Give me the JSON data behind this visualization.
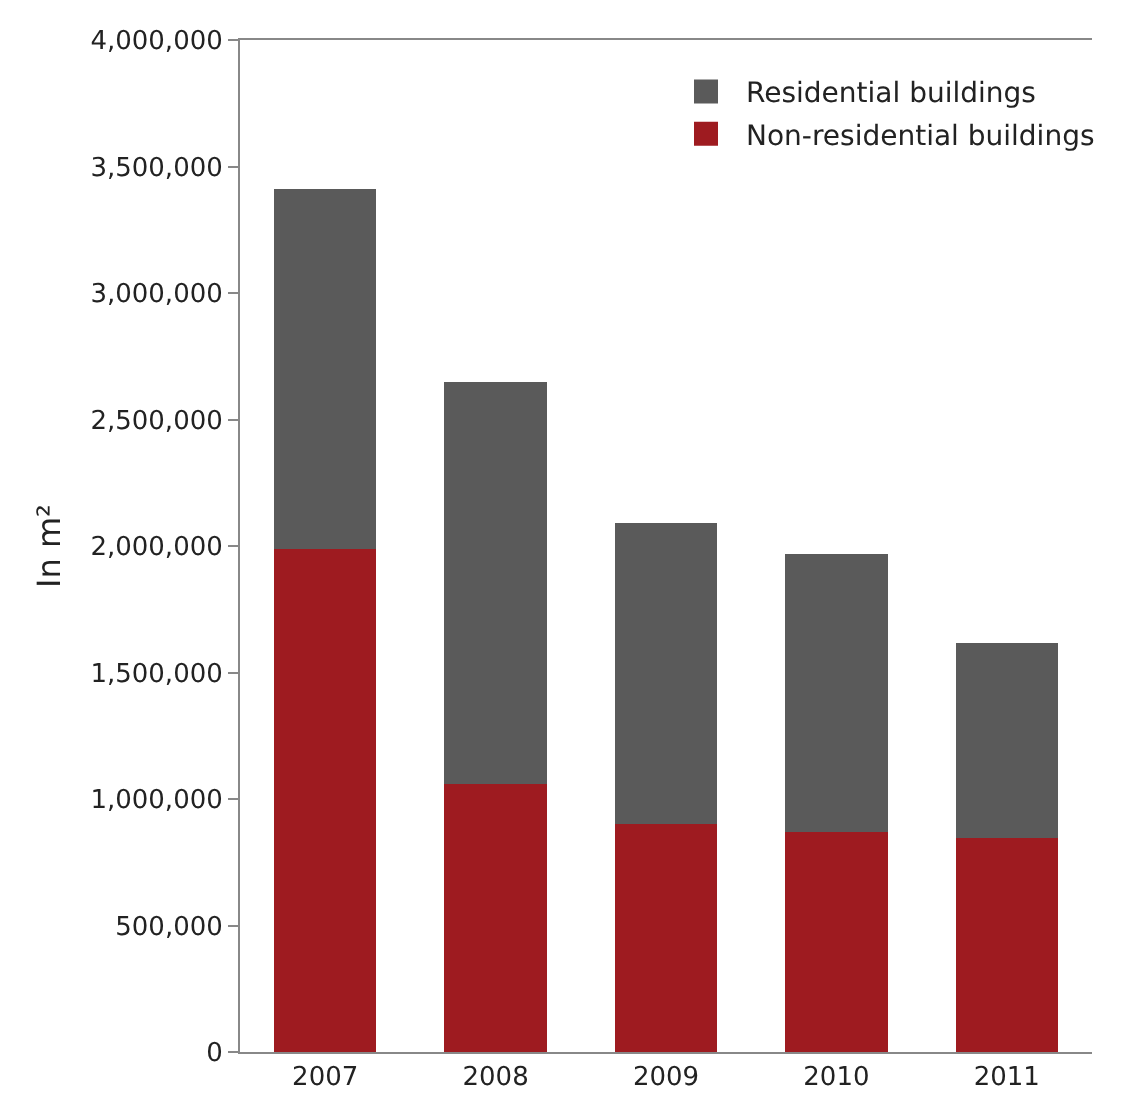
{
  "chart_data": {
    "type": "bar",
    "stacked": true,
    "ylabel": "In m²",
    "categories": [
      "2007",
      "2008",
      "2009",
      "2010",
      "2011"
    ],
    "series": [
      {
        "name": "Non-residential buildings",
        "color": "#9e1b20",
        "values": [
          1990000,
          1060000,
          900000,
          870000,
          845000
        ]
      },
      {
        "name": "Residential buildings",
        "color": "#5a5a5a",
        "values": [
          1420000,
          1590000,
          1190000,
          1100000,
          770000
        ]
      }
    ],
    "ylim": [
      0,
      4000000
    ],
    "yticks": [
      {
        "value": 0,
        "label": "0"
      },
      {
        "value": 500000,
        "label": "500,000"
      },
      {
        "value": 1000000,
        "label": "1,000,000"
      },
      {
        "value": 1500000,
        "label": "1,500,000"
      },
      {
        "value": 2000000,
        "label": "2,000,000"
      },
      {
        "value": 2500000,
        "label": "2,500,000"
      },
      {
        "value": 3000000,
        "label": "3,000,000"
      },
      {
        "value": 3500000,
        "label": "3,500,000"
      },
      {
        "value": 4000000,
        "label": "4,000,000"
      }
    ],
    "grid": false,
    "legend": "top right"
  }
}
